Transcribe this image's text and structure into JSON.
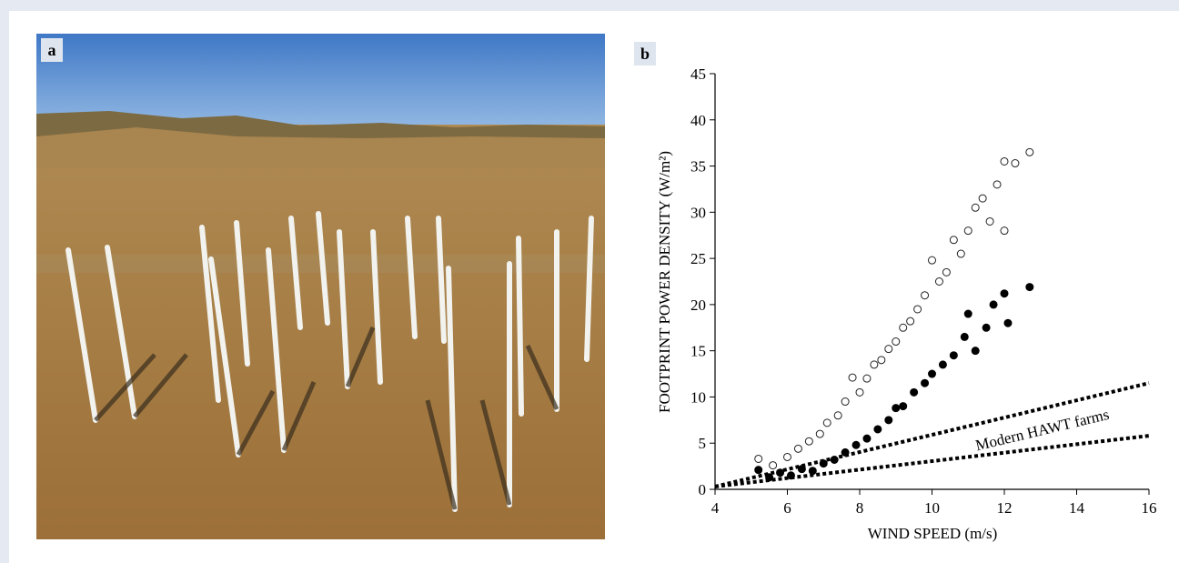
{
  "panel_labels": [
    "a",
    "b"
  ],
  "chart_data": {
    "type": "scatter",
    "xlabel": "WIND SPEED (m/s)",
    "ylabel": "FOOTPRINT POWER DENSITY (W/m²)",
    "annotation": "Modern HAWT farms",
    "xlim": [
      4,
      16
    ],
    "ylim": [
      0,
      45
    ],
    "xticks": [
      4,
      6,
      8,
      10,
      12,
      14,
      16
    ],
    "yticks": [
      0,
      5,
      10,
      15,
      20,
      25,
      30,
      35,
      40,
      45
    ],
    "grid": false,
    "series": [
      {
        "style": "open",
        "color": "#222222",
        "x": [
          5.2,
          5.6,
          6.0,
          6.3,
          6.6,
          6.9,
          7.1,
          7.4,
          7.6,
          7.8,
          8.0,
          8.2,
          8.4,
          8.6,
          8.8,
          9.0,
          9.2,
          9.4,
          9.6,
          9.8,
          10.0,
          10.2,
          10.4,
          10.6,
          10.8,
          11.0,
          11.2,
          11.4,
          11.6,
          11.8,
          12.0,
          12.0,
          12.3,
          12.7
        ],
        "values": [
          3.3,
          2.6,
          3.5,
          4.4,
          5.2,
          6.0,
          7.2,
          8.0,
          9.5,
          12.1,
          10.5,
          12.0,
          13.5,
          14.0,
          15.2,
          16.0,
          17.5,
          18.2,
          19.5,
          21.0,
          24.8,
          22.5,
          23.5,
          27.0,
          25.5,
          28.0,
          30.5,
          31.5,
          29.0,
          33.0,
          35.5,
          28.0,
          35.3,
          36.5
        ]
      },
      {
        "style": "filled",
        "color": "#000000",
        "x": [
          5.2,
          5.5,
          5.8,
          6.1,
          6.4,
          6.7,
          7.0,
          7.3,
          7.6,
          7.9,
          8.2,
          8.5,
          8.8,
          9.0,
          9.2,
          9.5,
          9.8,
          10.0,
          10.3,
          10.6,
          10.9,
          11.0,
          11.2,
          11.5,
          11.7,
          12.0,
          12.1,
          12.7
        ],
        "values": [
          2.1,
          1.3,
          1.8,
          1.5,
          2.2,
          2.0,
          2.8,
          3.2,
          4.0,
          4.8,
          5.5,
          6.5,
          7.5,
          8.8,
          9.0,
          10.5,
          11.5,
          12.5,
          13.5,
          14.5,
          16.5,
          19.0,
          15.0,
          17.5,
          20.0,
          21.2,
          18.0,
          21.9
        ]
      },
      {
        "style": "dotted",
        "color": "#000000",
        "x": [
          4,
          16
        ],
        "values": [
          0.3,
          11.5
        ]
      },
      {
        "style": "dotted",
        "color": "#000000",
        "x": [
          4,
          16
        ],
        "values": [
          0.3,
          5.8
        ]
      }
    ]
  }
}
